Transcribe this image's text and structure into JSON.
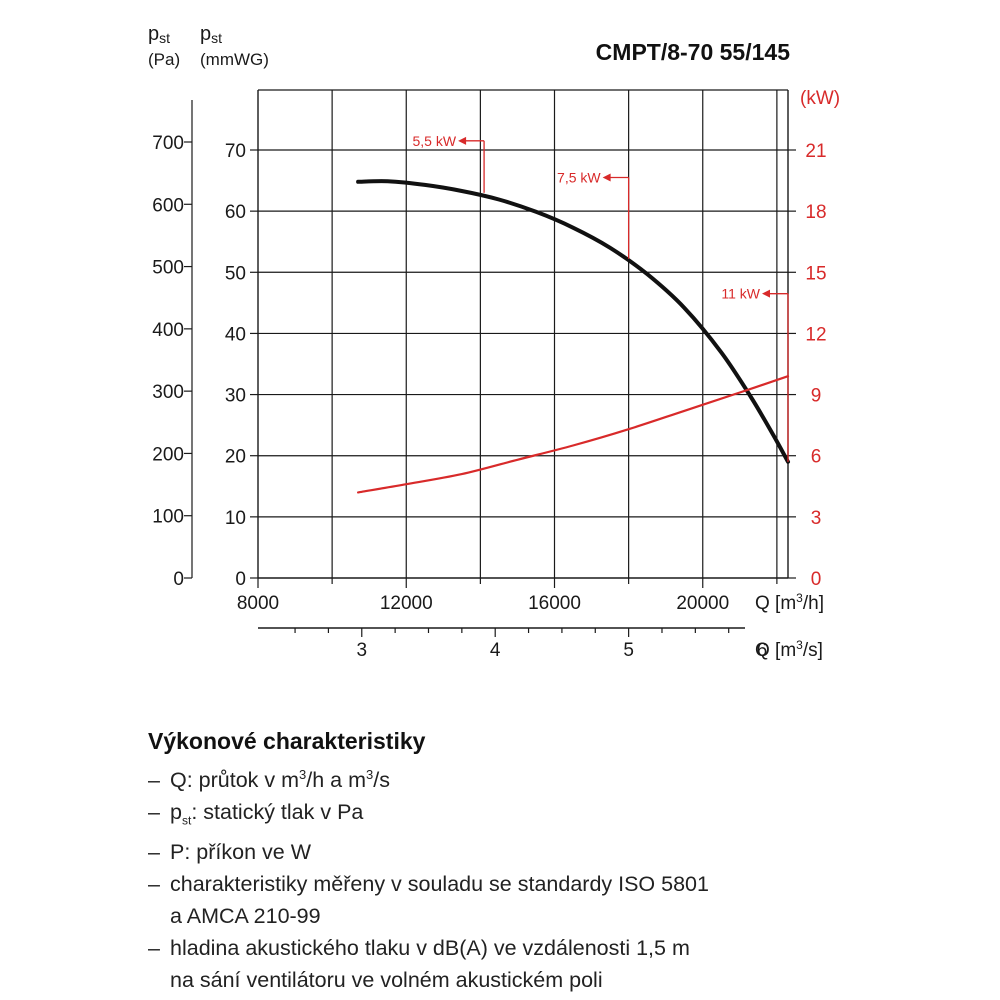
{
  "chart_data": {
    "type": "line",
    "title": "CMPT/8-70 55/145",
    "y_left_pa": {
      "symbol": "p",
      "subscript": "st",
      "unit": "(Pa)",
      "range": [
        0,
        700
      ],
      "ticks": [
        "0",
        "100",
        "200",
        "300",
        "400",
        "500",
        "600",
        "700"
      ]
    },
    "y_left_mmwg": {
      "symbol": "p",
      "subscript": "st",
      "unit": "(mmWG)",
      "range": [
        0,
        70
      ],
      "ticks": [
        "0",
        "10",
        "20",
        "30",
        "40",
        "50",
        "60",
        "70"
      ]
    },
    "y_right_kw": {
      "unit": "(kW)",
      "range": [
        0,
        21
      ],
      "ticks": [
        "0",
        "3",
        "6",
        "9",
        "12",
        "15",
        "18",
        "21"
      ]
    },
    "x_m3h": {
      "label_prefix": "Q [m",
      "label_sup": "3",
      "label_suffix": "/h]",
      "range": [
        8000,
        22300
      ],
      "ticks": [
        8000,
        12000,
        16000,
        20000
      ],
      "tick_labels": [
        "8000",
        "12000",
        "16000",
        "20000"
      ]
    },
    "x_m3s": {
      "label_prefix": "Q [m",
      "label_sup": "3",
      "label_suffix": "/s]",
      "ticks": [
        3,
        4,
        5,
        6
      ],
      "tick_labels": [
        "3",
        "4",
        "5",
        "6"
      ]
    },
    "grid": true,
    "series": [
      {
        "axis": "mmWG",
        "color": "#111111",
        "x": [
          10700,
          11500,
          12500,
          13500,
          14500,
          15500,
          16500,
          17500,
          18500,
          19500,
          20500,
          21300,
          21900,
          22300
        ],
        "y": [
          64.8,
          64.9,
          64.3,
          63.3,
          61.9,
          59.9,
          57.3,
          54.0,
          49.7,
          44.2,
          36.9,
          29.6,
          23.4,
          19.0
        ]
      },
      {
        "axis": "kW",
        "color": "#d82a2a",
        "x": [
          10700,
          12000,
          13500,
          15000,
          16500,
          18000,
          19500,
          21000,
          22300
        ],
        "y": [
          4.2,
          4.6,
          5.1,
          5.8,
          6.5,
          7.3,
          8.2,
          9.1,
          9.9
        ]
      }
    ],
    "annotations": [
      {
        "label": "5,5 kW",
        "color": "#d82a2a",
        "x_end": 14100,
        "y_end_mmwg": 63.0,
        "y_mark_mmwg": 71.5
      },
      {
        "label": "7,5 kW",
        "color": "#d82a2a",
        "x_end": 18000,
        "y_end_mmwg": 52.2,
        "y_mark_mmwg": 65.5
      },
      {
        "label": "11 kW",
        "color": "#d82a2a",
        "x_end": 22300,
        "y_end_mmwg": 19.0,
        "y_mark_mmwg": 46.5
      }
    ]
  },
  "legend": {
    "title": "Výkonové charakteristiky",
    "items": [
      {
        "dash": "–",
        "pre": "Q: průtok v m",
        "sup": "3",
        "post": "/h a m",
        "sup2": "3",
        "post2": "/s"
      },
      {
        "dash": "–",
        "pre": "p",
        "sub": "st",
        "post": ": statický tlak v Pa"
      },
      {
        "dash": "–",
        "text": "P: příkon ve W"
      },
      {
        "dash": "–",
        "line1": "charakteristiky měřeny v souladu se standardy ISO 5801",
        "line2": "a AMCA 210-99"
      },
      {
        "dash": "–",
        "line1": "hladina akustického tlaku v dB(A) ve vzdálenosti 1,5 m",
        "line2": "na sání ventilátoru ve volném akustickém poli"
      }
    ]
  }
}
